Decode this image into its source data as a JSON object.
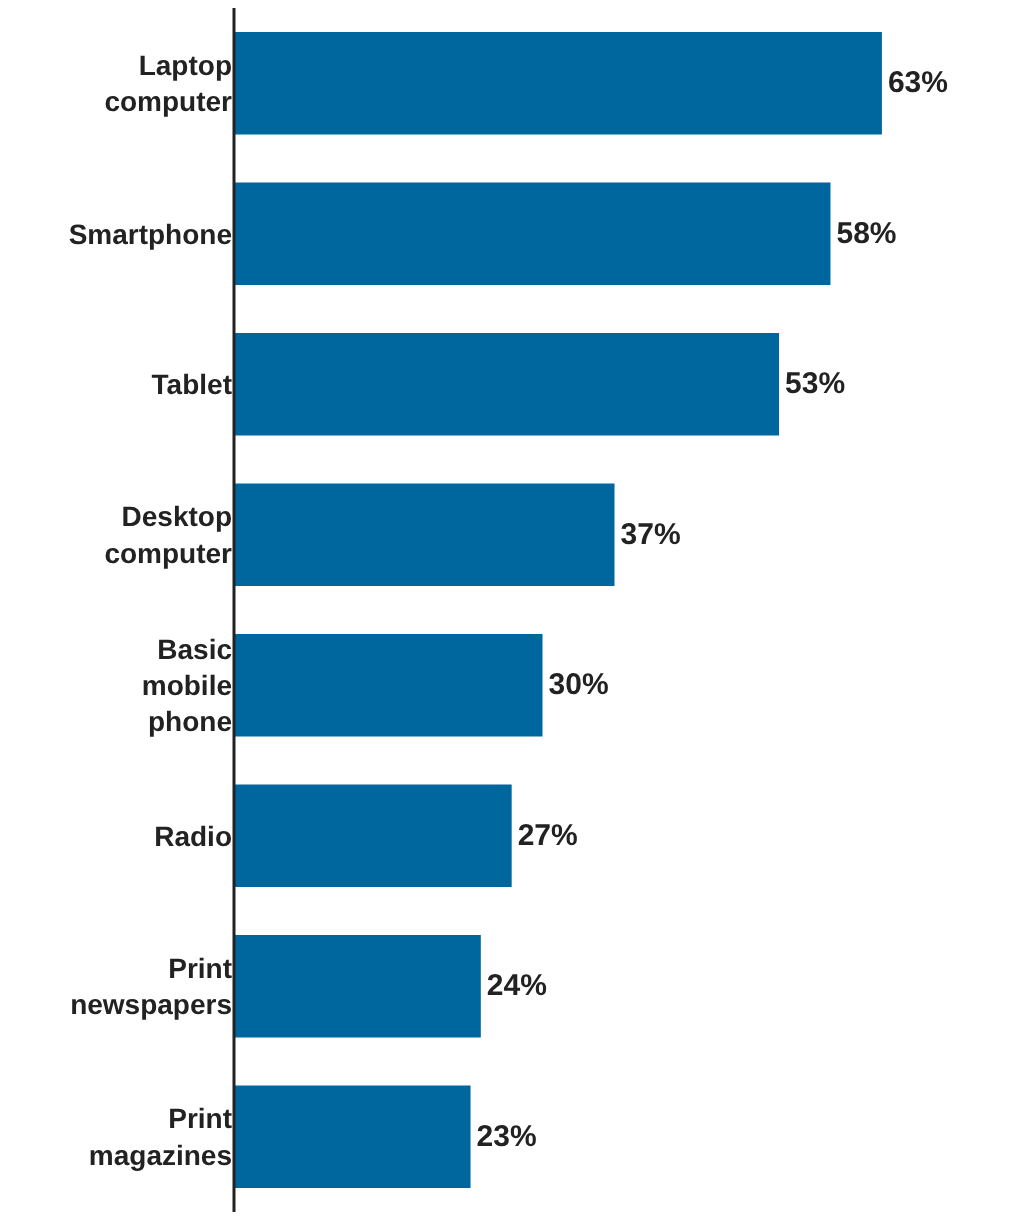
{
  "chart_data": {
    "type": "bar",
    "orientation": "horizontal",
    "categories": [
      "Laptop computer",
      "Smartphone",
      "Tablet",
      "Desktop computer",
      "Basic mobile phone",
      "Radio",
      "Print newspapers",
      "Print magazines"
    ],
    "values": [
      63,
      58,
      53,
      37,
      30,
      27,
      24,
      23
    ],
    "value_labels": [
      "63%",
      "58%",
      "53%",
      "37%",
      "30%",
      "27%",
      "24%",
      "23%"
    ],
    "color": "#00669e",
    "grid": false,
    "legend": false
  }
}
